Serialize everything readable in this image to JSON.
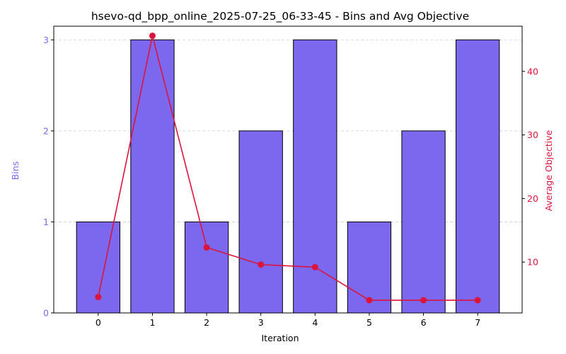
{
  "chart_data": {
    "type": "bar",
    "title": "hsevo-qd_bpp_online_2025-07-25_06-33-45 - Bins and Avg Objective",
    "xlabel": "Iteration",
    "categories": [
      "0",
      "1",
      "2",
      "3",
      "4",
      "5",
      "6",
      "7"
    ],
    "grid": true,
    "y_left": {
      "label": "Bins",
      "color": "#7b68ee",
      "ylim": [
        0,
        3.15
      ],
      "ticks": [
        "0",
        "1",
        "2",
        "3"
      ],
      "tick_values": [
        0,
        1,
        2,
        3
      ]
    },
    "y_right": {
      "label": "Average Objective",
      "color": "#dc143c",
      "ylim": [
        2.0,
        47.1
      ],
      "ticks": [
        "10",
        "20",
        "30",
        "40"
      ],
      "tick_values": [
        10,
        20,
        30,
        40
      ]
    },
    "series": [
      {
        "kind": "bar",
        "axis": "left",
        "color": "#7b68ee",
        "edge_color": "#000000",
        "values": [
          1,
          3,
          1,
          2,
          3,
          1,
          2,
          3
        ]
      },
      {
        "kind": "line",
        "axis": "right",
        "color": "#dc143c",
        "marker": "circle",
        "values": [
          4.5,
          45.6,
          12.3,
          9.6,
          9.2,
          4.0,
          4.0,
          4.0
        ]
      }
    ]
  }
}
